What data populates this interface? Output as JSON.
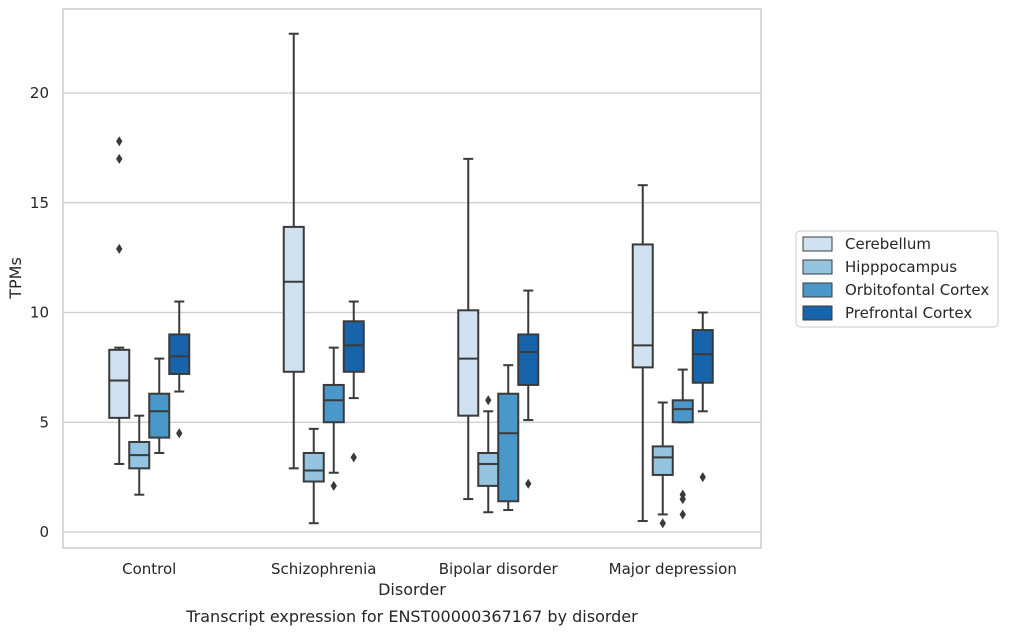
{
  "chart_data": {
    "type": "box",
    "title": "",
    "xlabel": "Disorder",
    "ylabel": "TPMs",
    "caption": "Transcript expression for ENST00000367167 by disorder",
    "ylim": [
      -0.7,
      23.8
    ],
    "yticks": [
      0,
      5,
      10,
      15,
      20
    ],
    "grid": true,
    "legend_position": "right",
    "categories": [
      "Control",
      "Schizophrenia",
      "Bipolar disorder",
      "Major depression"
    ],
    "series": [
      {
        "name": "Cerebellum",
        "color": "#d0e1f2",
        "boxes": [
          {
            "whisker_low": 3.1,
            "q1": 5.2,
            "median": 6.9,
            "q3": 8.3,
            "whisker_high": 8.4,
            "outliers": [
              12.9,
              17.0,
              17.8
            ]
          },
          {
            "whisker_low": 2.9,
            "q1": 7.3,
            "median": 11.4,
            "q3": 13.9,
            "whisker_high": 22.7,
            "outliers": []
          },
          {
            "whisker_low": 1.5,
            "q1": 5.3,
            "median": 7.9,
            "q3": 10.1,
            "whisker_high": 17.0,
            "outliers": []
          },
          {
            "whisker_low": 0.5,
            "q1": 7.5,
            "median": 8.5,
            "q3": 13.1,
            "whisker_high": 15.8,
            "outliers": []
          }
        ]
      },
      {
        "name": "Hipppocampus",
        "color": "#94c4df",
        "boxes": [
          {
            "whisker_low": 1.7,
            "q1": 2.9,
            "median": 3.5,
            "q3": 4.1,
            "whisker_high": 5.3,
            "outliers": []
          },
          {
            "whisker_low": 0.4,
            "q1": 2.3,
            "median": 2.8,
            "q3": 3.6,
            "whisker_high": 4.7,
            "outliers": []
          },
          {
            "whisker_low": 0.9,
            "q1": 2.1,
            "median": 3.1,
            "q3": 3.6,
            "whisker_high": 5.5,
            "outliers": [
              6.0
            ]
          },
          {
            "whisker_low": 0.8,
            "q1": 2.6,
            "median": 3.4,
            "q3": 3.9,
            "whisker_high": 5.9,
            "outliers": [
              0.4
            ]
          }
        ]
      },
      {
        "name": "Orbitofontal Cortex",
        "color": "#4a98c9",
        "boxes": [
          {
            "whisker_low": 3.6,
            "q1": 4.3,
            "median": 5.5,
            "q3": 6.3,
            "whisker_high": 7.9,
            "outliers": []
          },
          {
            "whisker_low": 2.7,
            "q1": 5.0,
            "median": 6.0,
            "q3": 6.7,
            "whisker_high": 8.4,
            "outliers": [
              2.1
            ]
          },
          {
            "whisker_low": 1.0,
            "q1": 1.4,
            "median": 4.5,
            "q3": 6.3,
            "whisker_high": 7.6,
            "outliers": []
          },
          {
            "whisker_low": 5.0,
            "q1": 5.0,
            "median": 5.6,
            "q3": 6.0,
            "whisker_high": 7.4,
            "outliers": [
              0.8,
              1.5,
              1.7
            ]
          }
        ]
      },
      {
        "name": "Prefrontal Cortex",
        "color": "#1764ab",
        "boxes": [
          {
            "whisker_low": 6.4,
            "q1": 7.2,
            "median": 8.0,
            "q3": 9.0,
            "whisker_high": 10.5,
            "outliers": [
              4.5
            ]
          },
          {
            "whisker_low": 6.1,
            "q1": 7.3,
            "median": 8.5,
            "q3": 9.6,
            "whisker_high": 10.5,
            "outliers": [
              3.4
            ]
          },
          {
            "whisker_low": 5.1,
            "q1": 6.7,
            "median": 8.2,
            "q3": 9.0,
            "whisker_high": 11.0,
            "outliers": [
              2.2
            ]
          },
          {
            "whisker_low": 5.5,
            "q1": 6.8,
            "median": 8.1,
            "q3": 9.2,
            "whisker_high": 10.0,
            "outliers": [
              2.5
            ]
          }
        ]
      }
    ]
  }
}
